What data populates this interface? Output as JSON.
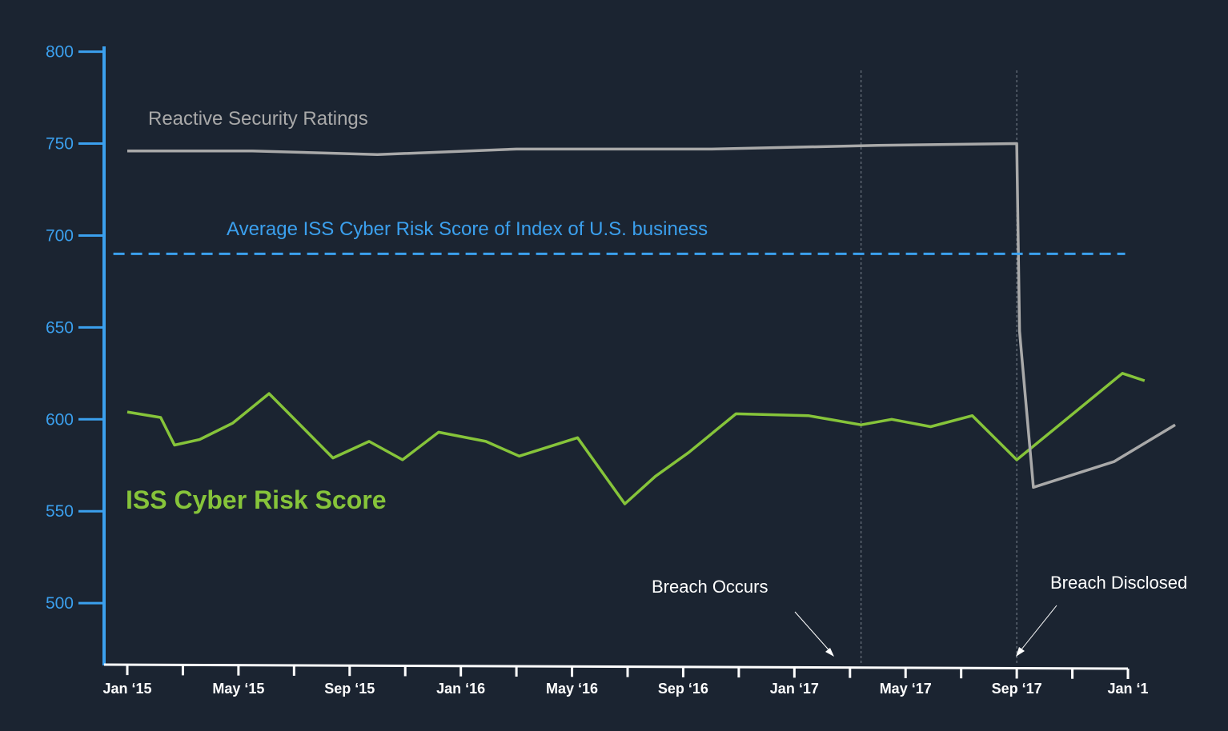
{
  "chart_data": {
    "type": "line",
    "ylim": [
      467,
      802
    ],
    "yticks": [
      500,
      550,
      600,
      650,
      700,
      750,
      800
    ],
    "xlim": [
      0,
      37
    ],
    "xticks": [
      {
        "x": 0,
        "label": "Jan ‘15"
      },
      {
        "x": 4,
        "label": "May ‘15"
      },
      {
        "x": 8,
        "label": "Sep ‘15"
      },
      {
        "x": 12,
        "label": "Jan ‘16"
      },
      {
        "x": 16,
        "label": "May ‘16"
      },
      {
        "x": 20,
        "label": "Sep ‘16"
      },
      {
        "x": 24,
        "label": "Jan ‘17"
      },
      {
        "x": 28,
        "label": "May ‘17"
      },
      {
        "x": 32,
        "label": "Sep ‘17"
      },
      {
        "x": 36,
        "label": "Jan ‘1"
      }
    ],
    "minor_ticks": [
      2,
      6,
      10,
      14,
      18,
      22,
      26,
      30,
      34
    ],
    "series": [
      {
        "name": "ISS Cyber Risk Score",
        "color": "#86c43a",
        "points": [
          [
            0,
            604
          ],
          [
            1.2,
            601
          ],
          [
            1.7,
            586
          ],
          [
            2.6,
            589
          ],
          [
            3.8,
            598
          ],
          [
            5.1,
            614
          ],
          [
            7.4,
            579
          ],
          [
            8.7,
            588
          ],
          [
            9.9,
            578
          ],
          [
            11.2,
            593
          ],
          [
            12.9,
            588
          ],
          [
            14.1,
            580
          ],
          [
            16.2,
            590
          ],
          [
            17.9,
            554
          ],
          [
            19.0,
            569
          ],
          [
            20.2,
            582
          ],
          [
            21.9,
            603
          ],
          [
            24.5,
            602
          ],
          [
            26.4,
            597
          ],
          [
            27.5,
            600
          ],
          [
            28.9,
            596
          ],
          [
            30.4,
            602
          ],
          [
            32.0,
            578
          ],
          [
            35.8,
            625
          ],
          [
            36.6,
            621
          ]
        ]
      },
      {
        "name": "Reactive Security Ratings",
        "color": "#a9a9a9",
        "points": [
          [
            0,
            746
          ],
          [
            4.5,
            746
          ],
          [
            9.0,
            744
          ],
          [
            14.0,
            747
          ],
          [
            21.0,
            747
          ],
          [
            27.0,
            749
          ],
          [
            32.0,
            750
          ],
          [
            32.1,
            648
          ],
          [
            32.6,
            563
          ],
          [
            35.5,
            577
          ],
          [
            37.7,
            597
          ]
        ]
      },
      {
        "name": "Average ISS Cyber Risk Score of Index of U.S. business",
        "color": "#3ba0ee",
        "dashed": true,
        "points": [
          [
            -0.5,
            690
          ],
          [
            35.9,
            690
          ]
        ]
      }
    ],
    "events": [
      {
        "x": 26.4,
        "label": "Breach Occurs"
      },
      {
        "x": 32.0,
        "label": "Breach Disclosed"
      }
    ],
    "annotations": {
      "reactive": "Reactive Security Ratings",
      "average": "Average ISS Cyber Risk Score of Index of U.S. business",
      "iss": "ISS Cyber Risk Score"
    },
    "colors": {
      "background": "#1b2431",
      "axis_left": "#3ba0ee",
      "axis_bottom": "#ffffff",
      "event_line": "#7d8590"
    },
    "grid": false,
    "legend": "none"
  }
}
